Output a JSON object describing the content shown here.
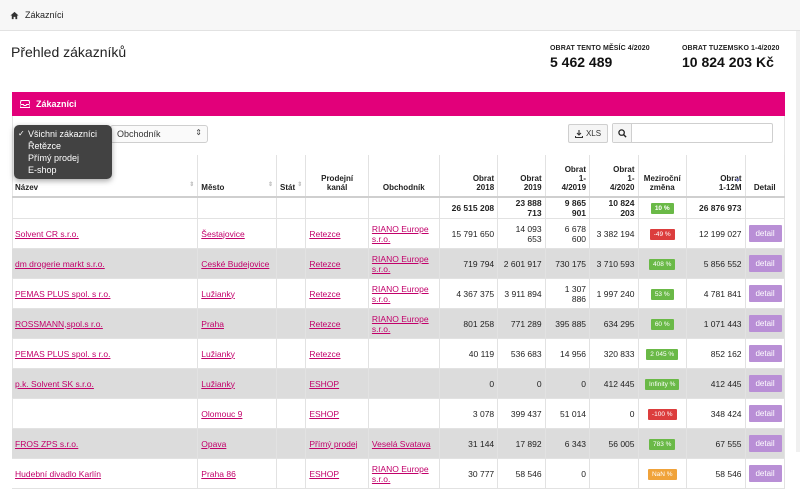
{
  "breadcrumb": {
    "label": "Zákazníci"
  },
  "page_title": "Přehled zákazníků",
  "stats": [
    {
      "label": "OBRAT TENTO MĚSÍC 4/2020",
      "value": "5 462 489"
    },
    {
      "label": "OBRAT TUZEMSKO 1-4/2020",
      "value": "10 824 203 Kč"
    }
  ],
  "panel": {
    "title": "Zákazníci"
  },
  "filter": {
    "options": [
      {
        "label": "Všichni zákazníci",
        "selected": true
      },
      {
        "label": "Řetězce",
        "selected": false
      },
      {
        "label": "Přímý prodej",
        "selected": false
      },
      {
        "label": "E-shop",
        "selected": false
      }
    ],
    "dealer_select": "Obchodník"
  },
  "toolbar": {
    "xls_label": "XLS",
    "search_value": ""
  },
  "colors": {
    "accent": "#e2007a",
    "link": "#c2006a",
    "detail_button": "#b98fd6",
    "badge_green": "#6ab947",
    "badge_red": "#dc3d3d",
    "badge_orange": "#f0a33a"
  },
  "table": {
    "headers": {
      "name": "Název",
      "city": "Město",
      "state": "Stát",
      "channel_1": "Prodejní",
      "channel_2": "kanál",
      "dealer": "Obchodník",
      "t2018_1": "Obrat",
      "t2018_2": "2018",
      "t2019_1": "Obrat",
      "t2019_2": "2019",
      "t14_2019_1": "Obrat",
      "t14_2019_2": "1-",
      "t14_2019_3": "4/2019",
      "t14_2020_1": "Obrat",
      "t14_2020_2": "1-",
      "t14_2020_3": "4/2020",
      "yoy_1": "Meziroční",
      "yoy_2": "změna",
      "t12m_1": "Obrat",
      "t12m_2": "1-12M",
      "detail": "Detail"
    },
    "totals": {
      "t2018": "26 515 208",
      "t2019": "23 888 713",
      "t14_2019": "9 865 901",
      "t14_2020": "10 824 203",
      "yoy": "10 %",
      "t12m": "26 876 973"
    },
    "rows": [
      {
        "name": "Solvent CR s.r.o.",
        "city": "Šestajovice",
        "state": "",
        "channel": "Retezce",
        "dealer": "RIANO Europe s.r.o.",
        "t2018": "15 791 650",
        "t2019": "14 093 653",
        "t14_2019": "6 678 600",
        "t14_2020": "3 382 194",
        "yoy": "-49 %",
        "yoy_color": "red",
        "t12m": "12 199 027",
        "detail": "detail"
      },
      {
        "name": "dm drogerie markt s.r.o.",
        "city": "Ceské Budejovice",
        "state": "",
        "channel": "Retezce",
        "dealer": "RIANO Europe s.r.o.",
        "t2018": "719 794",
        "t2019": "2 601 917",
        "t14_2019": "730 175",
        "t14_2020": "3 710 593",
        "yoy": "408 %",
        "yoy_color": "green",
        "t12m": "5 856 552",
        "detail": "detail"
      },
      {
        "name": "PEMAS PLUS spol. s r.o.",
        "city": "Lužianky",
        "state": "",
        "channel": "Retezce",
        "dealer": "RIANO Europe s.r.o.",
        "t2018": "4 367 375",
        "t2019": "3 911 894",
        "t14_2019": "1 307 886",
        "t14_2020": "1 997 240",
        "yoy": "53 %",
        "yoy_color": "green",
        "t12m": "4 781 841",
        "detail": "detail"
      },
      {
        "name": "ROSSMANN,spol.s r.o.",
        "city": "Praha",
        "state": "",
        "channel": "Retezce",
        "dealer": "RIANO Europe s.r.o.",
        "t2018": "801 258",
        "t2019": "771 289",
        "t14_2019": "395 885",
        "t14_2020": "634 295",
        "yoy": "60 %",
        "yoy_color": "green",
        "t12m": "1 071 443",
        "detail": "detail"
      },
      {
        "name": "PEMAS PLUS spol. s r.o.",
        "city": "Lužianky",
        "state": "",
        "channel": "Retezce",
        "dealer": "",
        "t2018": "40 119",
        "t2019": "536 683",
        "t14_2019": "14 956",
        "t14_2020": "320 833",
        "yoy": "2 045 %",
        "yoy_color": "green",
        "t12m": "852 162",
        "detail": "detail"
      },
      {
        "name": "p.k. Solvent SK s.r.o.",
        "city": "Lužianky",
        "state": "",
        "channel": "ESHOP",
        "dealer": "",
        "t2018": "0",
        "t2019": "0",
        "t14_2019": "0",
        "t14_2020": "412 445",
        "yoy": "Infinity %",
        "yoy_color": "green",
        "t12m": "412 445",
        "detail": "detail"
      },
      {
        "name": "",
        "city": "Olomouc 9",
        "state": "",
        "channel": "ESHOP",
        "dealer": "",
        "t2018": "3 078",
        "t2019": "399 437",
        "t14_2019": "51 014",
        "t14_2020": "0",
        "yoy": "-100 %",
        "yoy_color": "red",
        "t12m": "348 424",
        "detail": "detail"
      },
      {
        "name": "FROS ZPS s.r.o.",
        "city": "Opava",
        "state": "",
        "channel": "Přímý prodej",
        "dealer": "Veselá Svatava",
        "t2018": "31 144",
        "t2019": "17 892",
        "t14_2019": "6 343",
        "t14_2020": "56 005",
        "yoy": "783 %",
        "yoy_color": "green",
        "t12m": "67 555",
        "detail": "detail"
      },
      {
        "name": "Hudební divadlo Karlín",
        "city": "Praha 86",
        "state": "",
        "channel": "ESHOP",
        "dealer": "RIANO Europe s.r.o.",
        "t2018": "30 777",
        "t2019": "58 546",
        "t14_2019": "0",
        "t14_2020": "",
        "yoy": "NaN %",
        "yoy_color": "orange",
        "t12m": "58 546",
        "detail": "detail"
      }
    ]
  }
}
